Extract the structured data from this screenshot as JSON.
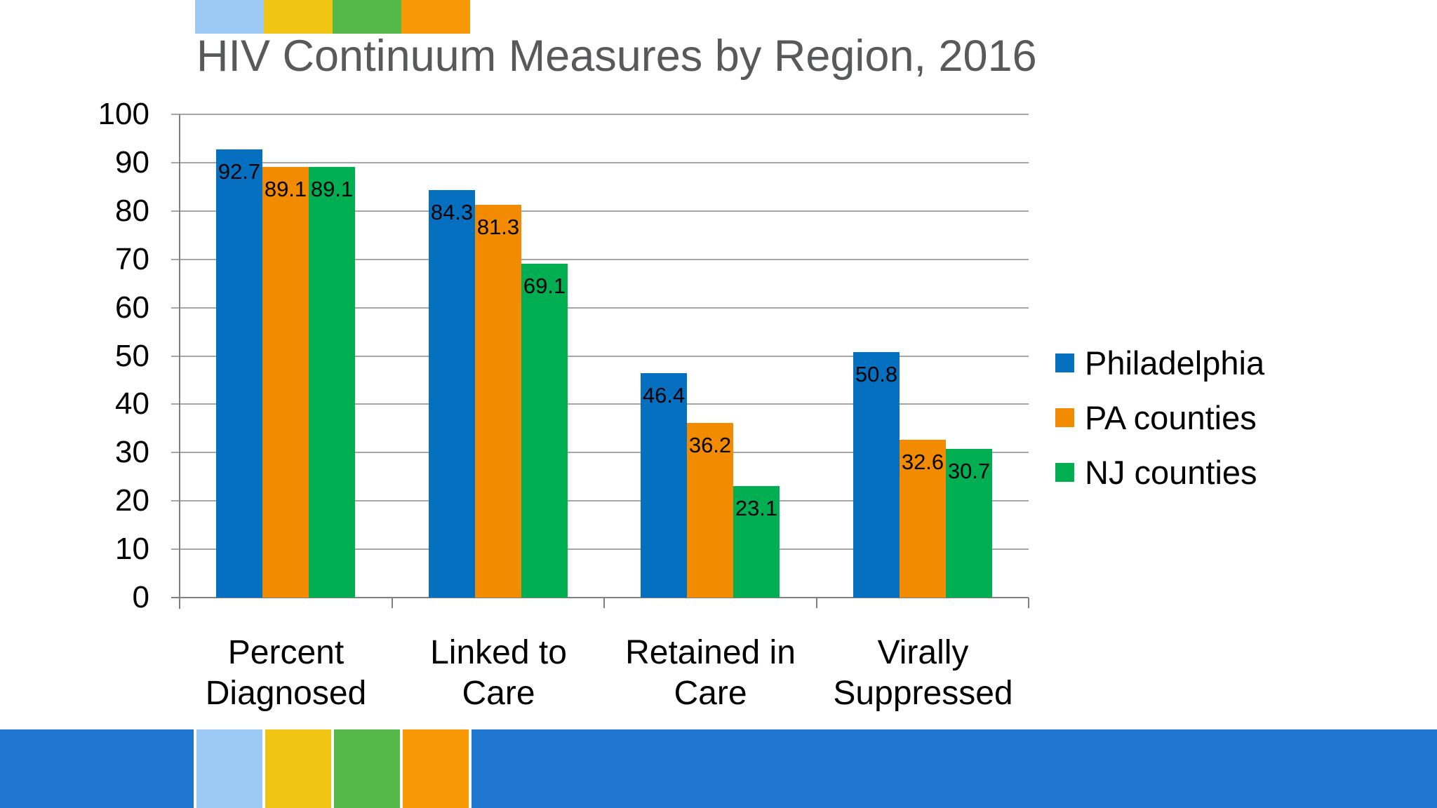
{
  "chart_data": {
    "type": "bar",
    "title": "HIV Continuum Measures by Region, 2016",
    "categories": [
      "Percent Diagnosed",
      "Linked to Care",
      "Retained in Care",
      "Virally Suppressed"
    ],
    "category_label_lines": [
      [
        "Percent",
        "Diagnosed"
      ],
      [
        "Linked to",
        "Care"
      ],
      [
        "Retained in",
        "Care"
      ],
      [
        "Virally",
        "Suppressed"
      ]
    ],
    "series": [
      {
        "name": "Philadelphia",
        "color": "#0670C0",
        "values": [
          92.7,
          84.3,
          46.4,
          50.8
        ]
      },
      {
        "name": "PA counties",
        "color": "#F38B00",
        "values": [
          89.1,
          81.3,
          36.2,
          32.6
        ]
      },
      {
        "name": "NJ counties",
        "color": "#02AE52",
        "values": [
          89.1,
          69.1,
          23.1,
          30.7
        ]
      }
    ],
    "data_labels": "inside-end-one-decimal",
    "ylim": [
      0,
      100
    ],
    "yticks": [
      0,
      10,
      20,
      30,
      40,
      50,
      60,
      70,
      80,
      90,
      100
    ],
    "grid": "horizontal-major",
    "gridline_color": "#A6A6A6",
    "axis_color": "#808080",
    "legend_position": "right",
    "title_color": "#58595B"
  },
  "decorations": {
    "top_strip_colors": [
      "#9CC9F4",
      "#F1C513",
      "#55B94A",
      "#F89806"
    ],
    "bottom_band_color": "#2077D2",
    "bottom_strip_colors": [
      "#9CC9F4",
      "#F1C513",
      "#55B94A",
      "#F89806"
    ]
  }
}
